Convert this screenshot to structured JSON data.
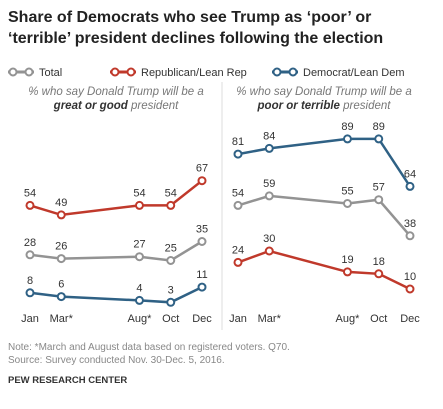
{
  "title": [
    "Share of Democrats who see Trump as ‘poor’ or",
    "‘terrible’ president declines following the election"
  ],
  "notes": [
    "Note: *March and August data based on registered voters. Q70.",
    "Source: Survey conducted Nov. 30-Dec. 5, 2016."
  ],
  "footer": "PEW RESEARCH CENTER",
  "chart_data": [
    {
      "type": "line",
      "subtitle": [
        "% who say Donald Trump will be a",
        "great or good",
        "president"
      ],
      "categories": [
        "Jan",
        "Mar*",
        "Aug*",
        "Oct",
        "Dec"
      ],
      "ylim": [
        0,
        100
      ],
      "series": [
        {
          "name": "Total",
          "color": "#939393",
          "values": [
            28,
            26,
            27,
            25,
            35
          ]
        },
        {
          "name": "Republican/Lean Rep",
          "color": "#c0392b",
          "values": [
            54,
            49,
            54,
            54,
            67
          ]
        },
        {
          "name": "Democrat/Lean Dem",
          "color": "#2f6185",
          "values": [
            8,
            6,
            4,
            3,
            11
          ]
        }
      ]
    },
    {
      "type": "line",
      "subtitle": [
        "% who say Donald Trump will be a",
        "poor or terrible",
        "president"
      ],
      "categories": [
        "Jan",
        "Mar*",
        "Aug*",
        "Oct",
        "Dec"
      ],
      "ylim": [
        0,
        100
      ],
      "series": [
        {
          "name": "Total",
          "color": "#939393",
          "values": [
            54,
            59,
            55,
            57,
            38
          ]
        },
        {
          "name": "Republican/Lean Rep",
          "color": "#c0392b",
          "values": [
            24,
            30,
            19,
            18,
            10
          ]
        },
        {
          "name": "Democrat/Lean Dem",
          "color": "#2f6185",
          "values": [
            81,
            84,
            89,
            89,
            64
          ]
        }
      ]
    }
  ]
}
